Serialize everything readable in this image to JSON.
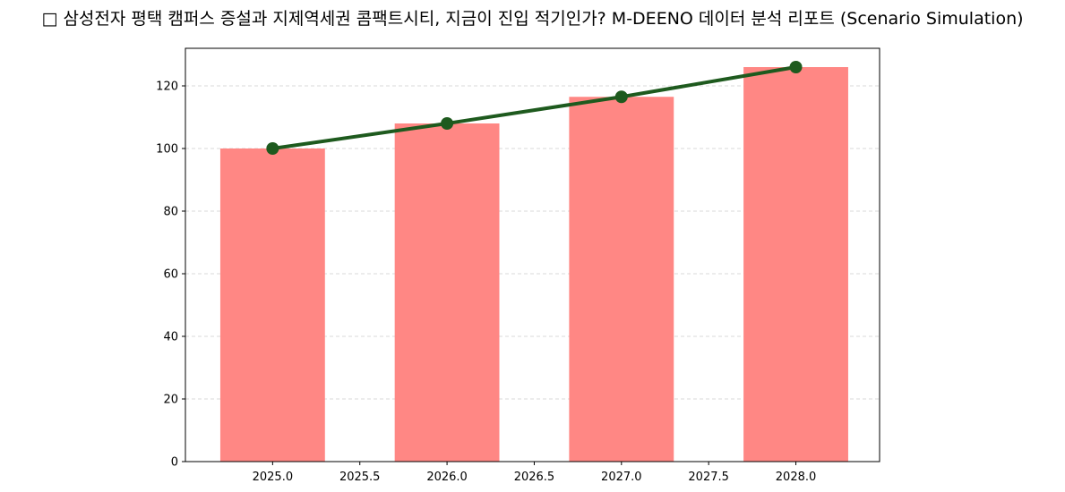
{
  "title": "□ 삼성전자 평택 캠퍼스 증설과 지제역세권 콤팩트시티, 지금이 진입 적기인가? M-DEENO 데이터 분석 리포트 (Scenario Simulation)",
  "chart_data": {
    "type": "bar",
    "title": "□ 삼성전자 평택 캠퍼스 증설과 지제역세권 콤팩트시티, 지금이 진입 적기인가? M-DEENO 데이터 분석 리포트 (Scenario Simulation)",
    "xlabel": "",
    "ylabel": "",
    "x": [
      2025,
      2026,
      2027,
      2028
    ],
    "series": [
      {
        "type": "bar",
        "values": [
          100,
          108,
          116.5,
          126
        ],
        "color": "#ff8784"
      },
      {
        "type": "line",
        "values": [
          100,
          108,
          116.5,
          126
        ],
        "color": "#1e5a1e"
      }
    ],
    "xlim": [
      2024.5,
      2028.48
    ],
    "ylim": [
      0,
      132
    ],
    "xticks": [
      2025.0,
      2025.5,
      2026.0,
      2026.5,
      2027.0,
      2027.5,
      2028.0
    ],
    "xtick_labels": [
      "2025.0",
      "2025.5",
      "2026.0",
      "2026.5",
      "2027.0",
      "2027.5",
      "2028.0"
    ],
    "yticks": [
      0,
      20,
      40,
      60,
      80,
      100,
      120
    ],
    "ytick_labels": [
      "0",
      "20",
      "40",
      "60",
      "80",
      "100",
      "120"
    ],
    "grid": "y-dashed",
    "legend": "none"
  }
}
